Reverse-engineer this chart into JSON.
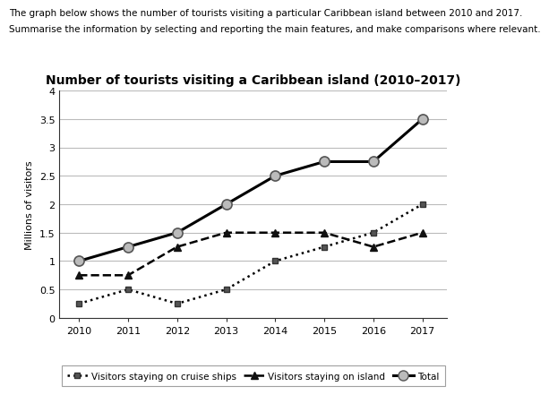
{
  "title": "Number of tourists visiting a Caribbean island (2010–2017)",
  "header_line1": "The graph below shows the number of tourists visiting a particular Caribbean island between 2010 and 2017.",
  "header_line2": "Summarise the information by selecting and reporting the main features, and make comparisons where relevant.",
  "ylabel": "Millions of visitors",
  "years": [
    2010,
    2011,
    2012,
    2013,
    2014,
    2015,
    2016,
    2017
  ],
  "cruise_ships": [
    0.25,
    0.5,
    0.25,
    0.5,
    1.0,
    1.25,
    1.5,
    2.0
  ],
  "on_island": [
    0.75,
    0.75,
    1.25,
    1.5,
    1.5,
    1.5,
    1.25,
    1.5
  ],
  "total": [
    1.0,
    1.25,
    1.5,
    2.0,
    2.5,
    2.75,
    2.75,
    3.5
  ],
  "ylim": [
    0,
    4
  ],
  "yticks": [
    0,
    0.5,
    1.0,
    1.5,
    2.0,
    2.5,
    3.0,
    3.5,
    4.0
  ],
  "background_color": "#ffffff",
  "grid_color": "#bbbbbb",
  "line_color": "#000000",
  "legend_cruise_label": "Visitors staying on cruise ships",
  "legend_island_label": "Visitors staying on island",
  "legend_total_label": "Total",
  "header1_fontsize": 7.5,
  "header2_fontsize": 7.5,
  "title_fontsize": 10,
  "axis_fontsize": 8,
  "ylabel_fontsize": 8
}
